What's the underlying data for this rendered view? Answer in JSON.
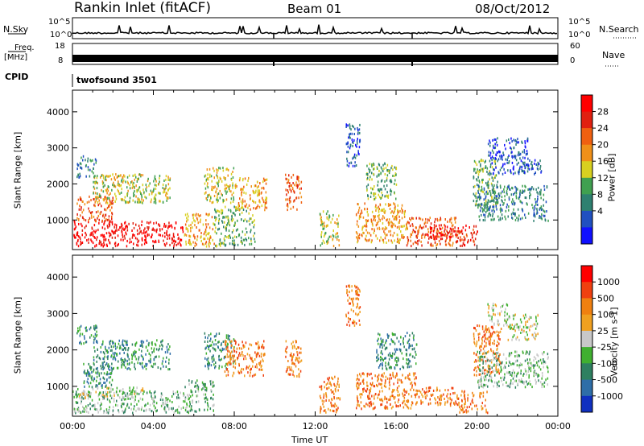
{
  "header": {
    "station": "Rankin Inlet (fitACF)",
    "beam": "Beam 01",
    "date": "08/Oct/2012"
  },
  "top_panels": {
    "nsky_label": "N.Sky",
    "nsky_ticks": [
      "10^5",
      "10^0"
    ],
    "nsearch_label": "N.Search",
    "nsearch_ticks": [
      "10^5",
      "10^0"
    ],
    "freq_label_1": "Freq.",
    "freq_label_2": "[MHz]",
    "freq_ticks": [
      "18",
      "8"
    ],
    "nave_label": "Nave",
    "nave_ticks": [
      "60",
      "0"
    ],
    "cpid_label": "CPID",
    "cpid_value": "twofsound  3501"
  },
  "chart_data": [
    {
      "type": "heatmap",
      "title": "",
      "ylabel": "Slant Range [km]",
      "xlabel": "",
      "ylim": [
        180,
        4600
      ],
      "yticks": [
        "1000",
        "2000",
        "3000",
        "4000"
      ],
      "xlim": [
        0,
        24
      ],
      "colorbar": {
        "label": "Power [dB]",
        "ticks": [
          "4",
          "8",
          "12",
          "16",
          "20",
          "24",
          "28"
        ],
        "colors": [
          "#1010ff",
          "#2050c0",
          "#2e8070",
          "#40a050",
          "#d8d020",
          "#f09018",
          "#f06010",
          "#e02010",
          "#ff0000"
        ]
      },
      "regions": [
        {
          "t0": 0.0,
          "t1": 5.5,
          "r0": 300,
          "r1": 1000,
          "level": 8
        },
        {
          "t0": 0.2,
          "t1": 2.0,
          "r0": 1000,
          "r1": 1700,
          "level": 6
        },
        {
          "t0": 1.0,
          "t1": 4.8,
          "r0": 1500,
          "r1": 2300,
          "level": 4
        },
        {
          "t0": 0.2,
          "t1": 1.2,
          "r0": 2200,
          "r1": 2800,
          "level": 2
        },
        {
          "t0": 5.5,
          "t1": 7.0,
          "r0": 300,
          "r1": 1200,
          "level": 5
        },
        {
          "t0": 6.5,
          "t1": 8.0,
          "r0": 1500,
          "r1": 2500,
          "level": 4
        },
        {
          "t0": 7.0,
          "t1": 9.0,
          "r0": 300,
          "r1": 1400,
          "level": 3
        },
        {
          "t0": 8.0,
          "t1": 9.6,
          "r0": 1300,
          "r1": 2200,
          "level": 5
        },
        {
          "t0": 10.5,
          "t1": 11.3,
          "r0": 1300,
          "r1": 2300,
          "level": 6
        },
        {
          "t0": 12.2,
          "t1": 13.2,
          "r0": 300,
          "r1": 1300,
          "level": 4
        },
        {
          "t0": 13.5,
          "t1": 14.2,
          "r0": 2500,
          "r1": 3700,
          "level": 1
        },
        {
          "t0": 14.0,
          "t1": 16.5,
          "r0": 400,
          "r1": 1500,
          "level": 5
        },
        {
          "t0": 14.5,
          "t1": 16.0,
          "r0": 1600,
          "r1": 2600,
          "level": 3
        },
        {
          "t0": 16.5,
          "t1": 19.0,
          "r0": 300,
          "r1": 1100,
          "level": 6
        },
        {
          "t0": 17.5,
          "t1": 19.0,
          "r0": 500,
          "r1": 900,
          "level": 8
        },
        {
          "t0": 19.0,
          "t1": 20.0,
          "r0": 300,
          "r1": 900,
          "level": 7
        },
        {
          "t0": 19.8,
          "t1": 21.0,
          "r0": 1300,
          "r1": 2700,
          "level": 3
        },
        {
          "t0": 20.0,
          "t1": 23.5,
          "r0": 1000,
          "r1": 2000,
          "level": 2
        },
        {
          "t0": 20.5,
          "t1": 22.5,
          "r0": 2300,
          "r1": 3300,
          "level": 1
        },
        {
          "t0": 22.0,
          "t1": 23.2,
          "r0": 2300,
          "r1": 2700,
          "level": 1
        }
      ]
    },
    {
      "type": "heatmap",
      "title": "",
      "ylabel": "Slant Range [km]",
      "xlabel": "Time UT",
      "ylim": [
        180,
        4600
      ],
      "yticks": [
        "1000",
        "2000",
        "3000",
        "4000"
      ],
      "xlim": [
        0,
        24
      ],
      "xticks": [
        "00:00",
        "04:00",
        "08:00",
        "12:00",
        "16:00",
        "20:00",
        "00:00"
      ],
      "colorbar": {
        "label": "Velocity [m s-1]",
        "ticks": [
          "1000",
          "500",
          "100",
          "25",
          "-25",
          "-100",
          "-500",
          "-1000"
        ],
        "colors": [
          "#1030c0",
          "#2e6ea8",
          "#2e8060",
          "#40b030",
          "#c8c8c8",
          "#f0a020",
          "#f08010",
          "#f04010",
          "#ff0000"
        ]
      },
      "regions": [
        {
          "t0": 0.0,
          "t1": 5.5,
          "r0": 300,
          "r1": 900,
          "level": 3
        },
        {
          "t0": 0.2,
          "t1": 3.5,
          "r0": 700,
          "r1": 1000,
          "level": 4
        },
        {
          "t0": 0.5,
          "t1": 2.0,
          "r0": 1000,
          "r1": 1700,
          "level": 2
        },
        {
          "t0": 1.0,
          "t1": 4.8,
          "r0": 1500,
          "r1": 2300,
          "level": 2
        },
        {
          "t0": 0.2,
          "t1": 1.2,
          "r0": 2200,
          "r1": 2700,
          "level": 2
        },
        {
          "t0": 5.5,
          "t1": 7.0,
          "r0": 300,
          "r1": 1200,
          "level": 3
        },
        {
          "t0": 6.5,
          "t1": 8.0,
          "r0": 1500,
          "r1": 2500,
          "level": 2
        },
        {
          "t0": 7.5,
          "t1": 9.5,
          "r0": 1300,
          "r1": 2300,
          "level": 6
        },
        {
          "t0": 10.5,
          "t1": 11.3,
          "r0": 1300,
          "r1": 2300,
          "level": 6
        },
        {
          "t0": 12.2,
          "t1": 13.2,
          "r0": 300,
          "r1": 1300,
          "level": 6
        },
        {
          "t0": 13.5,
          "t1": 14.2,
          "r0": 2700,
          "r1": 3800,
          "level": 6
        },
        {
          "t0": 14.0,
          "t1": 17.0,
          "r0": 400,
          "r1": 1400,
          "level": 6
        },
        {
          "t0": 15.0,
          "t1": 17.0,
          "r0": 1500,
          "r1": 2500,
          "level": 2
        },
        {
          "t0": 17.0,
          "t1": 19.0,
          "r0": 500,
          "r1": 1000,
          "level": 6
        },
        {
          "t0": 19.0,
          "t1": 20.5,
          "r0": 300,
          "r1": 900,
          "level": 6
        },
        {
          "t0": 19.8,
          "t1": 21.2,
          "r0": 1300,
          "r1": 2700,
          "level": 6
        },
        {
          "t0": 20.5,
          "t1": 21.5,
          "r0": 2700,
          "r1": 3300,
          "level": 4
        },
        {
          "t0": 21.5,
          "t1": 23.0,
          "r0": 2300,
          "r1": 3000,
          "level": 4
        },
        {
          "t0": 20.0,
          "t1": 23.5,
          "r0": 1000,
          "r1": 2000,
          "level": 3
        }
      ]
    }
  ]
}
